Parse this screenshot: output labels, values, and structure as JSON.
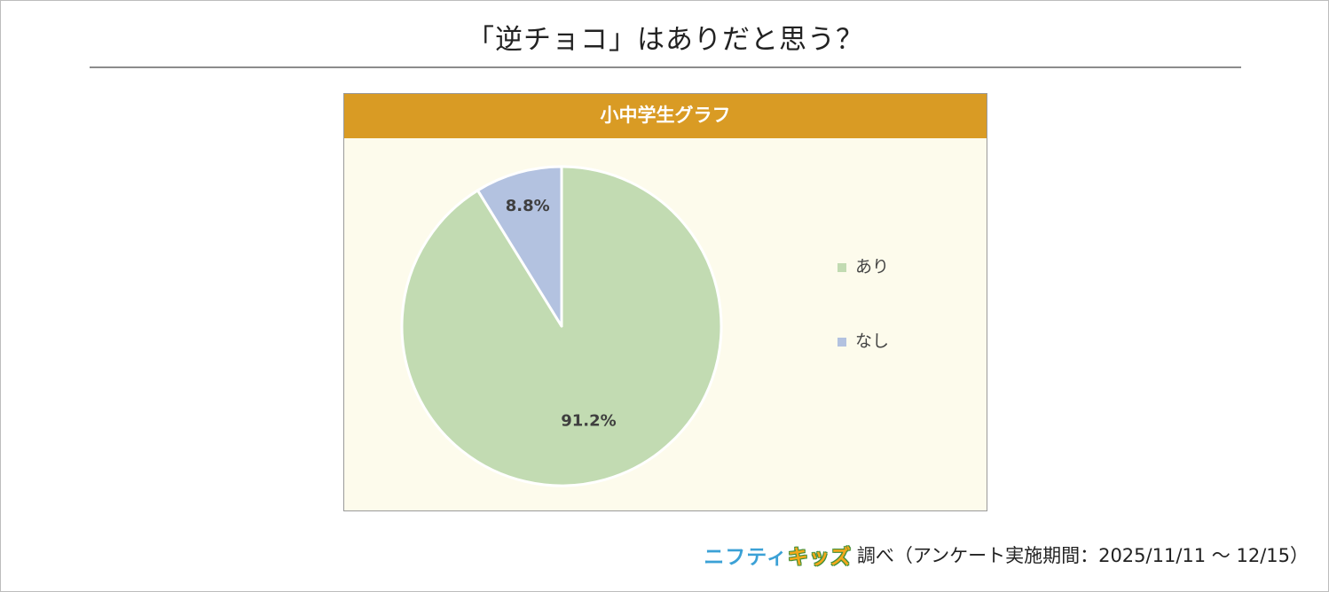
{
  "page": {
    "title": "「逆チョコ」はありだと思う？"
  },
  "chart_panel": {
    "header": "小中学生グラフ"
  },
  "chart_data": {
    "type": "pie",
    "title": "小中学生グラフ",
    "slices": [
      {
        "label": "あり",
        "value": 91.2,
        "display": "91.2%",
        "color": "#c2dbb2"
      },
      {
        "label": "なし",
        "value": 8.8,
        "display": "8.8%",
        "color": "#b3c2e0"
      }
    ],
    "start": "top",
    "direction": "clockwise",
    "legend_position": "right",
    "label_color": "#3f3f3f"
  },
  "source": {
    "logo_part1": "ニフティ",
    "logo_part2": "キッズ",
    "text": "調べ（アンケート実施期間：2025/11/11 ～ 12/15）"
  }
}
